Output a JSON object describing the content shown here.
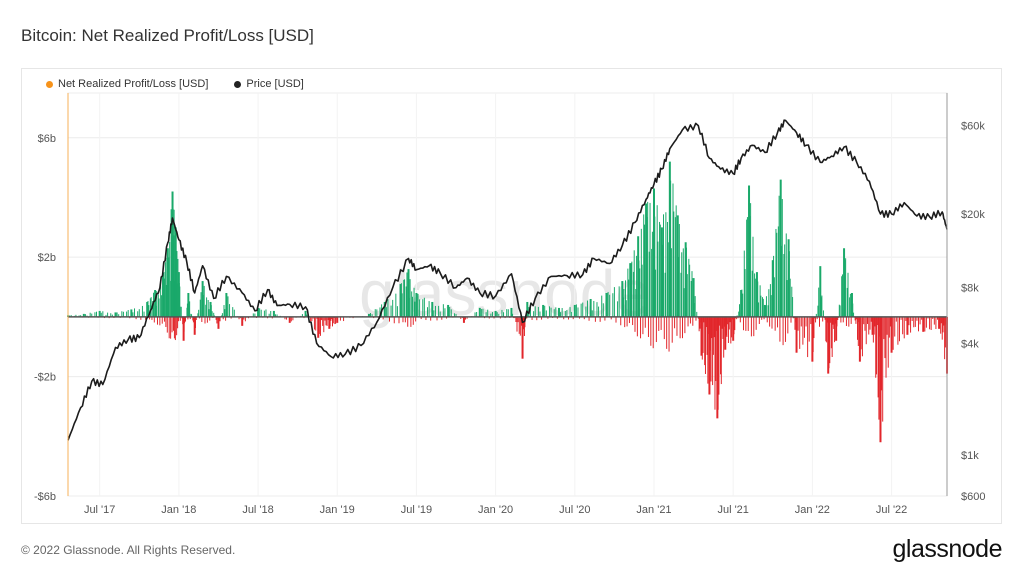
{
  "title": "Bitcoin: Net Realized Profit/Loss [USD]",
  "footer": "© 2022 Glassnode. All Rights Reserved.",
  "brand": "glassnode",
  "watermark": "glassnode",
  "legend": [
    {
      "label": "Net Realized Profit/Loss [USD]",
      "color": "#f7931a"
    },
    {
      "label": "Price [USD]",
      "color": "#222222"
    }
  ],
  "colors": {
    "profit": "#1aa96a",
    "loss": "#e2262b",
    "price": "#1c1c1c",
    "zero": "#555555",
    "grid": "#ececec"
  },
  "chart_data": {
    "type": "line",
    "title": "Bitcoin: Net Realized Profit/Loss [USD]",
    "x_range": [
      2017.3,
      2022.85
    ],
    "x_ticks": [
      {
        "label": "Jul '17",
        "value": 2017.5
      },
      {
        "label": "Jan '18",
        "value": 2018.0
      },
      {
        "label": "Jul '18",
        "value": 2018.5
      },
      {
        "label": "Jan '19",
        "value": 2019.0
      },
      {
        "label": "Jul '19",
        "value": 2019.5
      },
      {
        "label": "Jan '20",
        "value": 2020.0
      },
      {
        "label": "Jul '20",
        "value": 2020.5
      },
      {
        "label": "Jan '21",
        "value": 2021.0
      },
      {
        "label": "Jul '21",
        "value": 2021.5
      },
      {
        "label": "Jan '22",
        "value": 2022.0
      },
      {
        "label": "Jul '22",
        "value": 2022.5
      }
    ],
    "left_axis": {
      "unit": "USD",
      "range": [
        -6.0,
        7.5
      ],
      "ticks": [
        {
          "label": "$6b",
          "value": 6
        },
        {
          "label": "$2b",
          "value": 2
        },
        {
          "label": "-$2b",
          "value": -2
        },
        {
          "label": "-$6b",
          "value": -6
        }
      ]
    },
    "right_axis": {
      "unit": "USD",
      "scale": "log",
      "range": [
        600,
        90000
      ],
      "ticks": [
        {
          "label": "$60k",
          "value": 60000
        },
        {
          "label": "$20k",
          "value": 20000
        },
        {
          "label": "$8k",
          "value": 8000
        },
        {
          "label": "$4k",
          "value": 4000
        },
        {
          "label": "$1k",
          "value": 1000
        },
        {
          "label": "$600",
          "value": 600
        }
      ]
    },
    "series": [
      {
        "name": "Net Realized Profit/Loss [USD]",
        "axis": "left",
        "unit": "USD billions",
        "points": [
          [
            2017.3,
            0.05
          ],
          [
            2017.4,
            0.1
          ],
          [
            2017.5,
            0.2
          ],
          [
            2017.6,
            0.15
          ],
          [
            2017.7,
            0.25
          ],
          [
            2017.8,
            0.5
          ],
          [
            2017.85,
            0.9
          ],
          [
            2017.9,
            1.4
          ],
          [
            2017.93,
            2.3
          ],
          [
            2017.96,
            4.2
          ],
          [
            2017.98,
            3.0
          ],
          [
            2018.0,
            1.5
          ],
          [
            2018.03,
            -0.8
          ],
          [
            2018.06,
            0.8
          ],
          [
            2018.1,
            -0.6
          ],
          [
            2018.15,
            1.2
          ],
          [
            2018.2,
            0.5
          ],
          [
            2018.25,
            -0.4
          ],
          [
            2018.3,
            0.8
          ],
          [
            2018.4,
            -0.3
          ],
          [
            2018.5,
            0.3
          ],
          [
            2018.6,
            0.2
          ],
          [
            2018.7,
            -0.2
          ],
          [
            2018.8,
            0.2
          ],
          [
            2018.88,
            -0.7
          ],
          [
            2018.95,
            -0.4
          ],
          [
            2019.0,
            -0.2
          ],
          [
            2019.2,
            0.1
          ],
          [
            2019.3,
            0.5
          ],
          [
            2019.4,
            1.1
          ],
          [
            2019.45,
            1.6
          ],
          [
            2019.5,
            0.8
          ],
          [
            2019.6,
            0.5
          ],
          [
            2019.7,
            0.4
          ],
          [
            2019.8,
            -0.2
          ],
          [
            2019.9,
            0.3
          ],
          [
            2020.0,
            0.2
          ],
          [
            2020.1,
            0.3
          ],
          [
            2020.17,
            -1.4
          ],
          [
            2020.2,
            0.5
          ],
          [
            2020.3,
            0.4
          ],
          [
            2020.4,
            0.3
          ],
          [
            2020.5,
            0.4
          ],
          [
            2020.6,
            0.6
          ],
          [
            2020.7,
            0.8
          ],
          [
            2020.8,
            1.2
          ],
          [
            2020.85,
            1.8
          ],
          [
            2020.9,
            2.7
          ],
          [
            2020.95,
            3.8
          ],
          [
            2021.0,
            4.3
          ],
          [
            2021.05,
            3.0
          ],
          [
            2021.1,
            5.2
          ],
          [
            2021.15,
            3.4
          ],
          [
            2021.2,
            2.5
          ],
          [
            2021.25,
            1.3
          ],
          [
            2021.3,
            -1.3
          ],
          [
            2021.35,
            -2.6
          ],
          [
            2021.4,
            -3.4
          ],
          [
            2021.45,
            -1.1
          ],
          [
            2021.5,
            -0.8
          ],
          [
            2021.55,
            0.9
          ],
          [
            2021.6,
            4.4
          ],
          [
            2021.65,
            1.5
          ],
          [
            2021.7,
            0.4
          ],
          [
            2021.75,
            1.9
          ],
          [
            2021.8,
            4.6
          ],
          [
            2021.85,
            2.6
          ],
          [
            2021.9,
            -1.2
          ],
          [
            2022.0,
            -1.5
          ],
          [
            2022.05,
            1.7
          ],
          [
            2022.1,
            -1.9
          ],
          [
            2022.15,
            -0.8
          ],
          [
            2022.2,
            2.3
          ],
          [
            2022.25,
            0.8
          ],
          [
            2022.3,
            -1.5
          ],
          [
            2022.38,
            -0.6
          ],
          [
            2022.43,
            -4.2
          ],
          [
            2022.5,
            -1.2
          ],
          [
            2022.6,
            -0.6
          ],
          [
            2022.7,
            -0.5
          ],
          [
            2022.8,
            -0.4
          ],
          [
            2022.85,
            -1.9
          ]
        ]
      },
      {
        "name": "Price [USD]",
        "axis": "right",
        "points": [
          [
            2017.3,
            1200
          ],
          [
            2017.38,
            1800
          ],
          [
            2017.45,
            2500
          ],
          [
            2017.52,
            2400
          ],
          [
            2017.6,
            3800
          ],
          [
            2017.68,
            4200
          ],
          [
            2017.75,
            4300
          ],
          [
            2017.82,
            6000
          ],
          [
            2017.88,
            8000
          ],
          [
            2017.93,
            14000
          ],
          [
            2017.96,
            19000
          ],
          [
            2018.0,
            14500
          ],
          [
            2018.05,
            11000
          ],
          [
            2018.1,
            7500
          ],
          [
            2018.15,
            10500
          ],
          [
            2018.22,
            7000
          ],
          [
            2018.3,
            9200
          ],
          [
            2018.4,
            7500
          ],
          [
            2018.48,
            6000
          ],
          [
            2018.56,
            7800
          ],
          [
            2018.62,
            6400
          ],
          [
            2018.7,
            6500
          ],
          [
            2018.8,
            6300
          ],
          [
            2018.87,
            4000
          ],
          [
            2018.96,
            3400
          ],
          [
            2019.05,
            3500
          ],
          [
            2019.15,
            3900
          ],
          [
            2019.25,
            5200
          ],
          [
            2019.35,
            8000
          ],
          [
            2019.45,
            11500
          ],
          [
            2019.5,
            10000
          ],
          [
            2019.58,
            10500
          ],
          [
            2019.65,
            9600
          ],
          [
            2019.75,
            8000
          ],
          [
            2019.82,
            9000
          ],
          [
            2019.9,
            7500
          ],
          [
            2020.0,
            7200
          ],
          [
            2020.1,
            9500
          ],
          [
            2020.17,
            5200
          ],
          [
            2020.25,
            7000
          ],
          [
            2020.35,
            9200
          ],
          [
            2020.45,
            9300
          ],
          [
            2020.55,
            9400
          ],
          [
            2020.62,
            11500
          ],
          [
            2020.72,
            10800
          ],
          [
            2020.8,
            13500
          ],
          [
            2020.88,
            18000
          ],
          [
            2020.95,
            24000
          ],
          [
            2021.0,
            29000
          ],
          [
            2021.05,
            35000
          ],
          [
            2021.1,
            45000
          ],
          [
            2021.18,
            57000
          ],
          [
            2021.28,
            60000
          ],
          [
            2021.35,
            40000
          ],
          [
            2021.42,
            35000
          ],
          [
            2021.5,
            33000
          ],
          [
            2021.55,
            40000
          ],
          [
            2021.62,
            47000
          ],
          [
            2021.7,
            43000
          ],
          [
            2021.78,
            55000
          ],
          [
            2021.83,
            64000
          ],
          [
            2021.9,
            55000
          ],
          [
            2021.96,
            47000
          ],
          [
            2022.05,
            38000
          ],
          [
            2022.12,
            41000
          ],
          [
            2022.2,
            46000
          ],
          [
            2022.28,
            38000
          ],
          [
            2022.36,
            30000
          ],
          [
            2022.43,
            20000
          ],
          [
            2022.5,
            20000
          ],
          [
            2022.58,
            23000
          ],
          [
            2022.66,
            19500
          ],
          [
            2022.74,
            19300
          ],
          [
            2022.82,
            20500
          ],
          [
            2022.85,
            16500
          ]
        ]
      }
    ]
  }
}
